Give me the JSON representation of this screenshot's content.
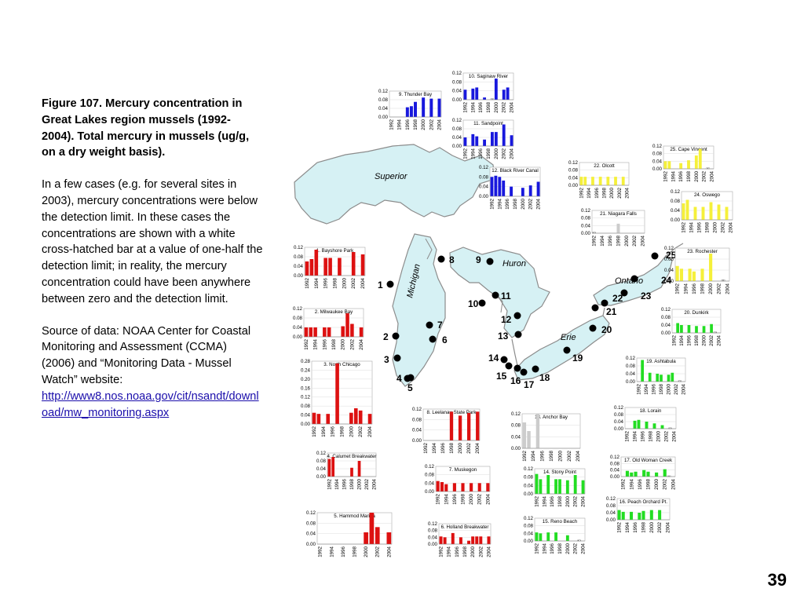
{
  "caption": "Figure 107. Mercury concentration in Great Lakes region mussels (1992-2004). Total mercury in mussels (ug/g, on a dry weight basis).",
  "para1": "In a few cases (e.g. for several sites in 2003), mercury concentrations were below the detection limit. In these cases the concentrations are shown with a white cross-hatched bar at a value of one-half the detection limit; in reality, the mercury concentration could have been anywhere between zero and the detection limit.",
  "para2": "Source of data: NOAA Center for Coastal Monitoring and Assessment (CCMA) (2006) and “Monitoring Data - Mussel Watch” website:",
  "source_url": "http://www8.nos.noaa.gov/cit/nsandt/download/mw_monitoring.aspx",
  "page_number": "39",
  "lakes": [
    "Superior",
    "Michigan",
    "Huron",
    "Ontario",
    "Erie"
  ],
  "colors": {
    "water": "#d6f1f4",
    "land": "#ffffff",
    "shore": "#8c8c8c",
    "red": "#dd1111",
    "blue": "#1818dd",
    "yellow": "#f5f03a",
    "green": "#22dd22",
    "site": "#000000"
  },
  "chart_data": [
    {
      "type": "bar",
      "title": "1. Bayshore Park",
      "color": "red",
      "categories": [
        "1992",
        "1994",
        "1996",
        "1998",
        "2000",
        "2002",
        "2004"
      ],
      "ylim": [
        0,
        0.12
      ],
      "yticks": [
        "0.00",
        "0.04",
        "0.08",
        "0.12"
      ],
      "values": [
        0.06,
        0.07,
        0.11,
        0,
        0.075,
        0.075,
        0,
        0.075,
        0,
        0.1,
        0.09
      ],
      "bdl": [],
      "x": [
        1992,
        1993,
        1994,
        1995,
        1996,
        1997,
        1998,
        1999,
        2000,
        2002,
        2004
      ]
    },
    {
      "type": "bar",
      "title": "2. Milwaukee Bay",
      "color": "red",
      "categories": [
        "1992",
        "1994",
        "1996",
        "1998",
        "2000",
        "2002",
        "2004"
      ],
      "ylim": [
        0,
        0.12
      ],
      "yticks": [
        "0.00",
        "0.04",
        "0.08",
        "0.12"
      ],
      "x": [
        1992,
        1993,
        1994,
        1995,
        1996,
        1997,
        1998,
        2000,
        2001,
        2002,
        2004
      ],
      "values": [
        0.04,
        0.04,
        0.04,
        0,
        0.04,
        0.04,
        0,
        0.045,
        0.1,
        0.055,
        0.04
      ],
      "bdl": []
    },
    {
      "type": "bar",
      "title": "3. North Chicago",
      "color": "red",
      "categories": [
        "1992",
        "1994",
        "1996",
        "1998",
        "2000",
        "2002",
        "2004"
      ],
      "ylim": [
        0,
        0.28
      ],
      "yticks": [
        "0.00",
        "0.04",
        "0.08",
        "0.12",
        "0.16",
        "0.20",
        "0.24",
        "0.28"
      ],
      "x": [
        1992,
        1993,
        1995,
        1997,
        2000,
        2001,
        2002,
        2004
      ],
      "values": [
        0.05,
        0.045,
        0.045,
        0.27,
        0.05,
        0.07,
        0.06,
        0.045
      ],
      "bdl": []
    },
    {
      "type": "bar",
      "title": "4. Calumet Breakwater",
      "color": "red",
      "categories": [
        "1992",
        "1994",
        "1996",
        "1998",
        "2000",
        "2002",
        "2004"
      ],
      "ylim": [
        0,
        0.12
      ],
      "yticks": [
        "0.00",
        "0.04",
        "0.08",
        "0.12"
      ],
      "x": [
        1992,
        1993,
        1998,
        2000
      ],
      "values": [
        0.09,
        0.1,
        0.045,
        0.08
      ],
      "bdl": []
    },
    {
      "type": "bar",
      "title": "5. Hammod Marina",
      "color": "red",
      "categories": [
        "1992",
        "1994",
        "1996",
        "1998",
        "2000",
        "2002",
        "2004"
      ],
      "ylim": [
        0,
        0.12
      ],
      "yticks": [
        "0.00",
        "0.04",
        "0.08",
        "0.12"
      ],
      "x": [
        2000,
        2001,
        2002,
        2004
      ],
      "values": [
        0.045,
        0.13,
        0.065,
        0.045
      ],
      "bdl": []
    },
    {
      "type": "bar",
      "title": "6. Holland Breakwater",
      "color": "red",
      "categories": [
        "1992",
        "1994",
        "1996",
        "1998",
        "2000",
        "2002",
        "2004"
      ],
      "ylim": [
        0,
        0.12
      ],
      "yticks": [
        "0.00",
        "0.04",
        "0.08",
        "0.12"
      ],
      "x": [
        1992,
        1993,
        1995,
        1997,
        1999,
        2000,
        2001,
        2002,
        2004
      ],
      "values": [
        0.045,
        0.04,
        0.065,
        0.04,
        0.02,
        0.045,
        0.045,
        0.045,
        0.045
      ],
      "bdl": []
    },
    {
      "type": "bar",
      "title": "7. Muskegon",
      "color": "red",
      "categories": [
        "1992",
        "1994",
        "1996",
        "1998",
        "2000",
        "2002",
        "2004"
      ],
      "ylim": [
        0,
        0.12
      ],
      "yticks": [
        "0.00",
        "0.04",
        "0.08",
        "0.12"
      ],
      "x": [
        1992,
        1993,
        1994,
        1996,
        1998,
        2000,
        2002,
        2004
      ],
      "values": [
        0.05,
        0.045,
        0.035,
        0.04,
        0.04,
        0.04,
        0.04,
        0.04
      ],
      "bdl": []
    },
    {
      "type": "bar",
      "title": "8. Leelanau State Park",
      "color": "red",
      "categories": [
        "1992",
        "1994",
        "1996",
        "1998",
        "2000",
        "2002",
        "2004"
      ],
      "ylim": [
        0,
        0.12
      ],
      "yticks": [
        "0.00",
        "0.04",
        "0.08",
        "0.12"
      ],
      "x": [
        1998,
        2000,
        2002,
        2004
      ],
      "values": [
        0.11,
        0.095,
        0.105,
        0.11
      ],
      "bdl": []
    },
    {
      "type": "bar",
      "title": "9. Thunder Bay",
      "color": "blue",
      "categories": [
        "1992",
        "1994",
        "1996",
        "1998",
        "2000",
        "2002",
        "2004"
      ],
      "ylim": [
        0,
        0.12
      ],
      "yticks": [
        "0.00",
        "0.04",
        "0.08",
        "0.12"
      ],
      "x": [
        1995,
        1996,
        1997,
        1998,
        2000,
        2002,
        2004
      ],
      "values": [
        0,
        0.045,
        0.05,
        0.07,
        0.09,
        0.085,
        0.085
      ],
      "bdl": []
    },
    {
      "type": "bar",
      "title": "10. Saginaw River",
      "color": "blue",
      "categories": [
        "1992",
        "1994",
        "1996",
        "1998",
        "2000",
        "2002",
        "2004"
      ],
      "ylim": [
        0,
        0.12
      ],
      "yticks": [
        "0.00",
        "0.04",
        "0.08",
        "0.12"
      ],
      "x": [
        1992,
        1994,
        1995,
        1997,
        1999,
        2000,
        2002,
        2003
      ],
      "values": [
        0.045,
        0.05,
        0.055,
        0.01,
        0.005,
        0.095,
        0.045,
        0.055
      ],
      "bdl": [
        1999
      ]
    },
    {
      "type": "bar",
      "title": "11. Sandpoint",
      "color": "blue",
      "categories": [
        "1992",
        "1994",
        "1996",
        "1998",
        "2000",
        "2002",
        "2004"
      ],
      "ylim": [
        0,
        0.12
      ],
      "yticks": [
        "0.00",
        "0.04",
        "0.08",
        "0.12"
      ],
      "x": [
        1992,
        1994,
        1995,
        1997,
        1999,
        2000,
        2002,
        2004
      ],
      "values": [
        0.04,
        0.055,
        0.045,
        0.03,
        0.065,
        0.065,
        0.1,
        0.05
      ],
      "bdl": []
    },
    {
      "type": "bar",
      "title": "12. Black River Canal",
      "color": "blue",
      "categories": [
        "1992",
        "1994",
        "1996",
        "1998",
        "2000",
        "2002",
        "2004"
      ],
      "ylim": [
        0,
        0.12
      ],
      "yticks": [
        "0.00",
        "0.04",
        "0.08",
        "0.12"
      ],
      "x": [
        1992,
        1993,
        1994,
        1995,
        1997,
        2000,
        2002,
        2004
      ],
      "values": [
        0.08,
        0.085,
        0.08,
        0.065,
        0.04,
        0.035,
        0.045,
        0.06
      ],
      "bdl": []
    },
    {
      "type": "bar",
      "title": "13. Anchor Bay",
      "color": "grey",
      "categories": [
        "1992",
        "1994",
        "1996",
        "1998",
        "2000",
        "2002",
        "2004"
      ],
      "ylim": [
        0,
        0.12
      ],
      "yticks": [
        "0.00",
        "0.04",
        "0.08",
        "0.12"
      ],
      "x": [
        1992,
        1993,
        1995
      ],
      "values": [
        0.09,
        0.06,
        0.12
      ],
      "bdl": []
    },
    {
      "type": "bar",
      "title": "14. Stony Point",
      "color": "green",
      "categories": [
        "1992",
        "1994",
        "1996",
        "1998",
        "2000",
        "2002",
        "2004"
      ],
      "ylim": [
        0,
        0.12
      ],
      "yticks": [
        "0.00",
        "0.04",
        "0.08",
        "0.12"
      ],
      "x": [
        1992,
        1993,
        1995,
        1997,
        1998,
        2000,
        2002,
        2004
      ],
      "values": [
        0.095,
        0.07,
        0.09,
        0.07,
        0.07,
        0.065,
        0.09,
        0.065
      ],
      "bdl": []
    },
    {
      "type": "bar",
      "title": "15. Reno Beach",
      "color": "green",
      "categories": [
        "1992",
        "1994",
        "1996",
        "1998",
        "2000",
        "2002",
        "2004"
      ],
      "ylim": [
        0,
        0.12
      ],
      "yticks": [
        "0.00",
        "0.04",
        "0.08",
        "0.12"
      ],
      "x": [
        1992,
        1993,
        1995,
        1997,
        2000,
        2003
      ],
      "values": [
        0.045,
        0.04,
        0.045,
        0.045,
        0.03,
        0.005
      ],
      "bdl": [
        2003
      ]
    },
    {
      "type": "bar",
      "title": "16. Peach Orchard Pt.",
      "color": "green",
      "categories": [
        "1992",
        "1994",
        "1996",
        "1998",
        "2000",
        "2002",
        "2004"
      ],
      "ylim": [
        0,
        0.12
      ],
      "yticks": [
        "0.00",
        "0.04",
        "0.08",
        "0.12"
      ],
      "x": [
        1992,
        1993,
        1995,
        1997,
        1998,
        2000,
        2002
      ],
      "values": [
        0.055,
        0.045,
        0.045,
        0.04,
        0.05,
        0.055,
        0.055
      ],
      "bdl": []
    },
    {
      "type": "bar",
      "title": "17. Old Woman Creek",
      "color": "green",
      "categories": [
        "1992",
        "1994",
        "1996",
        "1998",
        "2000",
        "2002",
        "2004"
      ],
      "ylim": [
        0,
        0.12
      ],
      "yticks": [
        "0.00",
        "0.04",
        "0.08",
        "0.12"
      ],
      "x": [
        1993,
        1994,
        1995,
        1997,
        1998,
        2000,
        2002,
        2003
      ],
      "values": [
        0.035,
        0.025,
        0.03,
        0.04,
        0.03,
        0.025,
        0.045,
        0.005
      ],
      "bdl": [
        2003
      ]
    },
    {
      "type": "bar",
      "title": "18. Lorain",
      "color": "green",
      "categories": [
        "1992",
        "1994",
        "1996",
        "1998",
        "2000",
        "2002",
        "2004"
      ],
      "ylim": [
        0,
        0.12
      ],
      "yticks": [
        "0.00",
        "0.04",
        "0.08",
        "0.12"
      ],
      "x": [
        1994,
        1995,
        1997,
        1999,
        2001,
        2003
      ],
      "values": [
        0.045,
        0.05,
        0.04,
        0.03,
        0.02,
        0.005
      ],
      "bdl": [
        2003
      ]
    },
    {
      "type": "bar",
      "title": "19. Ashtabula",
      "color": "green",
      "categories": [
        "1992",
        "1994",
        "1996",
        "1998",
        "2000",
        "2002",
        "2004"
      ],
      "ylim": [
        0,
        0.12
      ],
      "yticks": [
        "0.00",
        "0.04",
        "0.08",
        "0.12"
      ],
      "x": [
        1993,
        1995,
        1997,
        1998,
        2000,
        2001,
        2003
      ],
      "values": [
        0.11,
        0.045,
        0.04,
        0.035,
        0.035,
        0.045,
        0.005
      ],
      "bdl": [
        2003
      ]
    },
    {
      "type": "bar",
      "title": "20. Dunkirk",
      "color": "green",
      "categories": [
        "1992",
        "1994",
        "1996",
        "1998",
        "2000",
        "2002",
        "2004"
      ],
      "ylim": [
        0,
        0.12
      ],
      "yticks": [
        "0.00",
        "0.04",
        "0.08",
        "0.12"
      ],
      "x": [
        1993,
        1994,
        1996,
        1998,
        2000,
        2002,
        2003
      ],
      "values": [
        0.05,
        0.04,
        0.04,
        0.035,
        0.035,
        0.045,
        0.005
      ],
      "bdl": [
        2003
      ]
    },
    {
      "type": "bar",
      "title": "21. Niagara Falls",
      "color": "grey",
      "categories": [
        "1992",
        "1994",
        "1996",
        "1998",
        "2000",
        "2002",
        "2004"
      ],
      "ylim": [
        0,
        0.12
      ],
      "yticks": [
        "0.00",
        "0.04",
        "0.08",
        "0.12"
      ],
      "x": [
        1992,
        1998
      ],
      "values": [
        0.005,
        0.05
      ],
      "bdl": [
        1992
      ]
    },
    {
      "type": "bar",
      "title": "22. Olcott",
      "color": "yellow",
      "categories": [
        "1992",
        "1994",
        "1996",
        "1998",
        "2000",
        "2002",
        "2004"
      ],
      "ylim": [
        0,
        0.12
      ],
      "yticks": [
        "0.00",
        "0.04",
        "0.08",
        "0.12"
      ],
      "x": [
        1992,
        1993,
        1995,
        1997,
        1999,
        2001,
        2003
      ],
      "values": [
        0.045,
        0.045,
        0.045,
        0.045,
        0.045,
        0.045,
        0.045
      ],
      "bdl": []
    },
    {
      "type": "bar",
      "title": "23. Rochester",
      "color": "yellow",
      "categories": [
        "1992",
        "1994",
        "1996",
        "1998",
        "2000",
        "2002",
        "2004"
      ],
      "ylim": [
        0,
        0.12
      ],
      "yticks": [
        "0.00",
        "0.04",
        "0.08",
        "0.12"
      ],
      "x": [
        1992,
        1993,
        1995,
        1996,
        1998,
        2000,
        2003
      ],
      "values": [
        0.055,
        0.045,
        0.045,
        0.035,
        0.045,
        0.1,
        0.005
      ],
      "bdl": [
        2003
      ]
    },
    {
      "type": "bar",
      "title": "24. Oswego",
      "color": "yellow",
      "categories": [
        "1992",
        "1994",
        "1996",
        "1998",
        "2000",
        "2002",
        "2004"
      ],
      "ylim": [
        0,
        0.12
      ],
      "yticks": [
        "0.00",
        "0.04",
        "0.08",
        "0.12"
      ],
      "x": [
        1992,
        1993,
        1995,
        1997,
        1999,
        2001,
        2003
      ],
      "values": [
        0.07,
        0.085,
        0.055,
        0.055,
        0.075,
        0.065,
        0.055
      ],
      "bdl": []
    },
    {
      "type": "bar",
      "title": "25. Cape Vincent",
      "color": "yellow",
      "categories": [
        "1992",
        "1994",
        "1996",
        "1998",
        "2000",
        "2002",
        "2004"
      ],
      "ylim": [
        0,
        0.12
      ],
      "yticks": [
        "0.00",
        "0.04",
        "0.08",
        "0.12"
      ],
      "x": [
        1992,
        1993,
        1996,
        1998,
        2000,
        2001,
        2003
      ],
      "values": [
        0.04,
        0.04,
        0.03,
        0.045,
        0.07,
        0.105,
        0.005
      ],
      "bdl": [
        2003
      ]
    }
  ],
  "sites": [
    {
      "n": "1"
    },
    {
      "n": "2"
    },
    {
      "n": "3"
    },
    {
      "n": "4"
    },
    {
      "n": "5"
    },
    {
      "n": "6"
    },
    {
      "n": "7"
    },
    {
      "n": "8"
    },
    {
      "n": "9"
    },
    {
      "n": "10"
    },
    {
      "n": "11"
    },
    {
      "n": "12"
    },
    {
      "n": "13"
    },
    {
      "n": "14"
    },
    {
      "n": "15"
    },
    {
      "n": "16"
    },
    {
      "n": "17"
    },
    {
      "n": "18"
    },
    {
      "n": "19"
    },
    {
      "n": "20"
    },
    {
      "n": "21"
    },
    {
      "n": "22"
    },
    {
      "n": "23"
    },
    {
      "n": "24"
    },
    {
      "n": "25"
    }
  ]
}
